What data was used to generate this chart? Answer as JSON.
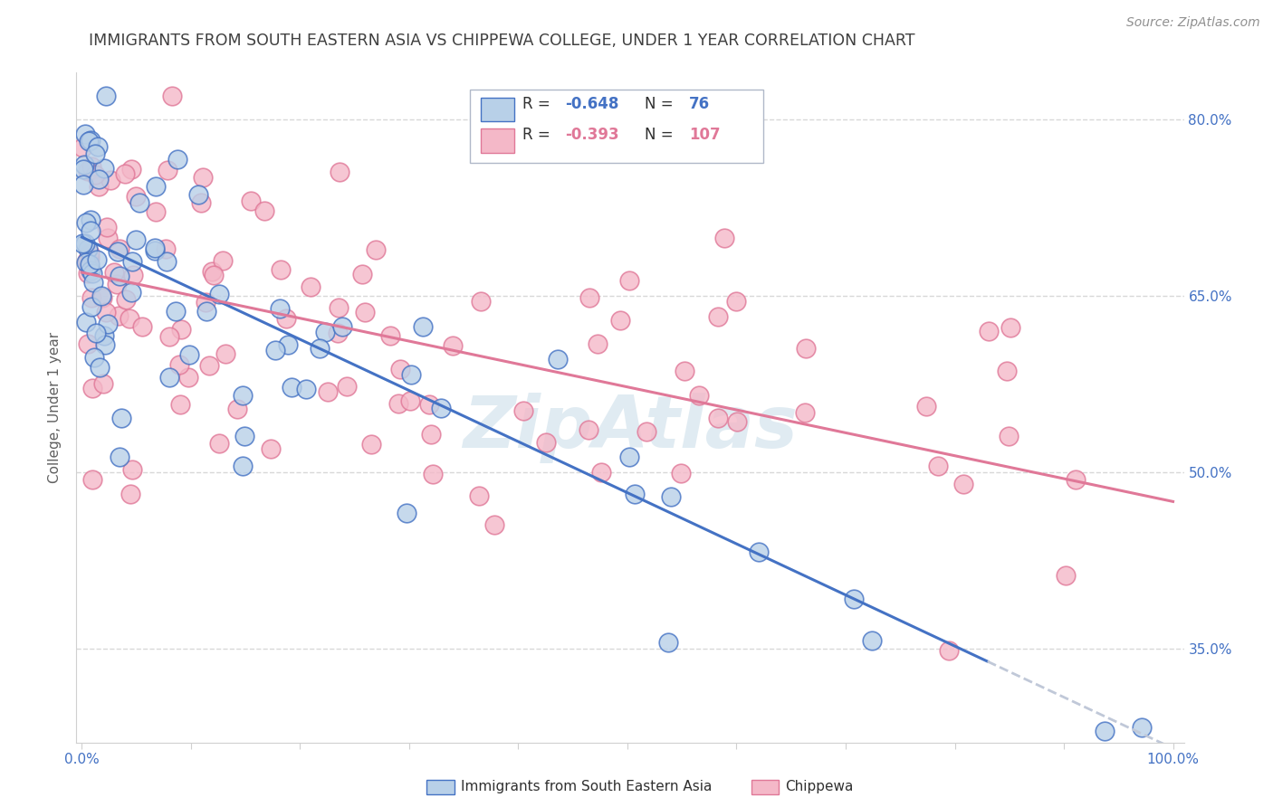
{
  "title": "IMMIGRANTS FROM SOUTH EASTERN ASIA VS CHIPPEWA COLLEGE, UNDER 1 YEAR CORRELATION CHART",
  "source": "Source: ZipAtlas.com",
  "ylabel": "College, Under 1 year",
  "xlim": [
    0.0,
    1.0
  ],
  "ylim": [
    0.27,
    0.84
  ],
  "yticks": [
    0.35,
    0.5,
    0.65,
    0.8
  ],
  "ytick_labels": [
    "35.0%",
    "50.0%",
    "65.0%",
    "80.0%"
  ],
  "xtick_labels": [
    "0.0%",
    "",
    "",
    "",
    "",
    "",
    "",
    "",
    "",
    "",
    "100.0%"
  ],
  "blue_fill": "#b8d0e8",
  "pink_fill": "#f4b8c8",
  "blue_edge": "#4472c4",
  "pink_edge": "#e07898",
  "blue_line": "#4472c4",
  "pink_line": "#e07898",
  "dashed_line": "#c0c8d8",
  "title_color": "#404040",
  "source_color": "#909090",
  "axis_color": "#d0d0d0",
  "grid_color": "#d8d8d8",
  "right_tick_color": "#4472c4",
  "bottom_tick_color": "#4472c4",
  "watermark_color": "#c8dce8",
  "watermark_text": "ZipAtlas",
  "legend_R_blue": "-0.648",
  "legend_N_blue": "76",
  "legend_R_pink": "-0.393",
  "legend_N_pink": "107",
  "blue_intercept": 0.7,
  "blue_slope": -0.435,
  "pink_intercept": 0.67,
  "pink_slope": -0.195,
  "blue_line_end": 0.83,
  "pink_line_end": 1.0
}
